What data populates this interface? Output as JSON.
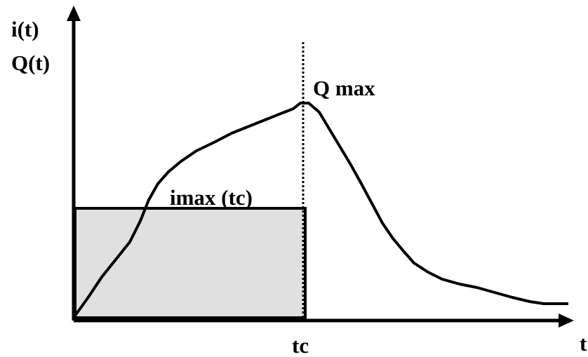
{
  "axes": {
    "y_label_1": "i(t)",
    "y_label_2": "Q(t)",
    "x_label": "t"
  },
  "annotations": {
    "peak": "Q max",
    "rectangle": "imax (tc)",
    "time_of_concentration": "tc"
  }
}
